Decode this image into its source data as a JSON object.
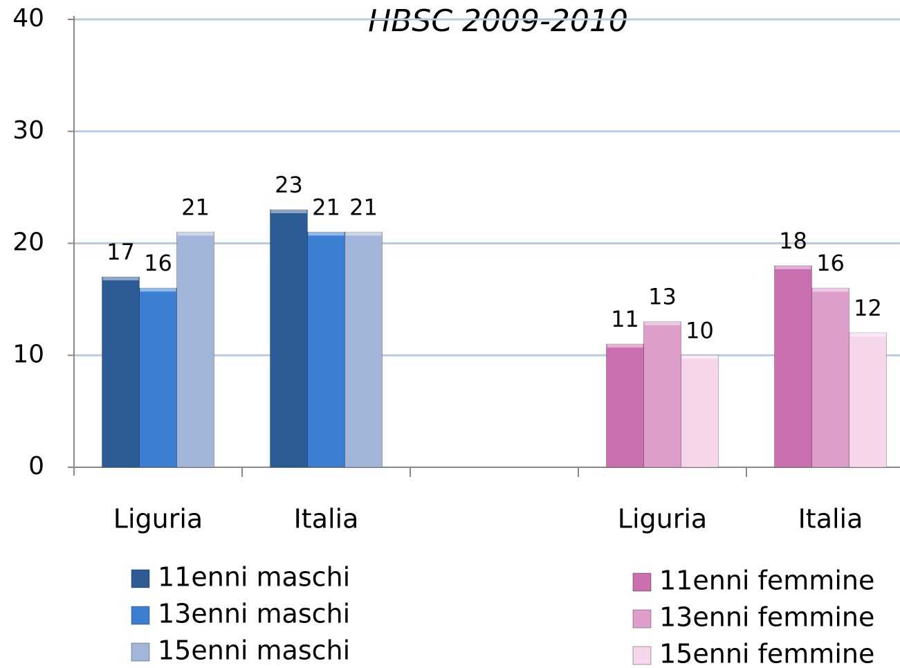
{
  "chart_data": {
    "type": "bar",
    "title": "HBSC 2009-2010",
    "categories": [
      "Liguria",
      "Italia",
      null,
      "Liguria",
      "Italia"
    ],
    "series": [
      {
        "name": "11enni maschi",
        "color": "#2d5b96",
        "values": [
          17,
          23,
          null,
          null,
          null
        ]
      },
      {
        "name": "13enni maschi",
        "color": "#3b7fd3",
        "values": [
          16,
          21,
          null,
          null,
          null
        ]
      },
      {
        "name": "15enni maschi",
        "color": "#a3b5d8",
        "values": [
          21,
          21,
          null,
          null,
          null
        ]
      },
      {
        "name": "11enni femmine",
        "color": "#c96fb0",
        "values": [
          null,
          null,
          null,
          11,
          18
        ]
      },
      {
        "name": "13enni femmine",
        "color": "#dd9fca",
        "values": [
          null,
          null,
          null,
          13,
          16
        ]
      },
      {
        "name": "15enni femmine",
        "color": "#f6d6eb",
        "values": [
          null,
          null,
          null,
          10,
          12
        ]
      }
    ],
    "ylim": [
      0,
      40
    ],
    "yticks": [
      0,
      10,
      20,
      30,
      40
    ],
    "grid": true
  }
}
